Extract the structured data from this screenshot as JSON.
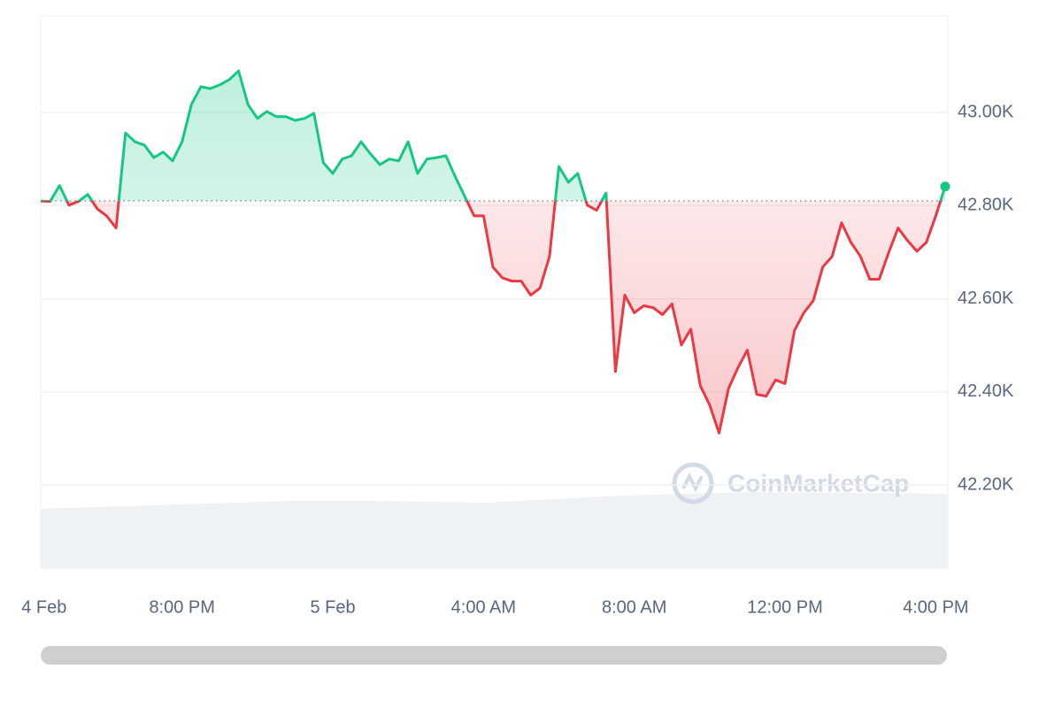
{
  "chart_data": {
    "type": "line",
    "x": [
      16.25,
      16.5,
      16.75,
      17,
      17.25,
      17.5,
      17.75,
      18,
      18.25,
      18.5,
      18.75,
      19,
      19.25,
      19.5,
      19.75,
      20,
      20.25,
      20.5,
      20.75,
      21,
      21.25,
      21.5,
      21.75,
      22,
      22.25,
      22.5,
      22.75,
      23,
      23.25,
      23.5,
      23.75,
      24,
      24.25,
      24.5,
      24.75,
      25,
      25.25,
      25.5,
      25.75,
      26,
      26.25,
      26.5,
      26.75,
      27,
      27.25,
      27.5,
      27.75,
      28,
      28.25,
      28.5,
      28.75,
      29,
      29.25,
      29.5,
      29.75,
      30,
      30.25,
      30.5,
      30.75,
      31,
      31.25,
      31.5,
      31.75,
      32,
      32.25,
      32.5,
      32.75,
      33,
      33.25,
      33.5,
      33.75,
      34,
      34.25,
      34.5,
      34.75,
      35,
      35.25,
      35.5,
      35.75,
      36,
      36.25,
      36.5,
      36.75,
      37,
      37.25,
      37.5,
      37.75,
      38,
      38.25,
      38.5,
      38.75,
      39,
      39.25,
      39.5,
      39.75,
      40,
      40.25
    ],
    "values": [
      42810,
      42809,
      42843,
      42801,
      42809,
      42824,
      42793,
      42778,
      42752,
      42956,
      42937,
      42930,
      42903,
      42915,
      42896,
      42937,
      43017,
      43055,
      43051,
      43059,
      43070,
      43089,
      43017,
      42987,
      43002,
      42991,
      42991,
      42983,
      42987,
      42998,
      42892,
      42869,
      42900,
      42907,
      42937,
      42911,
      42888,
      42900,
      42896,
      42937,
      42869,
      42900,
      42903,
      42907,
      42862,
      42820,
      42778,
      42778,
      42668,
      42645,
      42638,
      42638,
      42608,
      42623,
      42691,
      42884,
      42850,
      42869,
      42801,
      42790,
      42827,
      42444,
      42608,
      42570,
      42585,
      42581,
      42566,
      42589,
      42501,
      42535,
      42414,
      42372,
      42312,
      42407,
      42452,
      42490,
      42395,
      42391,
      42426,
      42418,
      42532,
      42570,
      42596,
      42668,
      42691,
      42763,
      42721,
      42691,
      42642,
      42642,
      42699,
      42752,
      42725,
      42702,
      42721,
      42778,
      42841
    ],
    "baseline": 42810,
    "color_up": "#16c784",
    "color_down": "#ea3943",
    "xlim": [
      16.25,
      40.25
    ],
    "xticks": [
      {
        "value": 16.34,
        "label": "4 Feb"
      },
      {
        "value": 20,
        "label": "8:00 PM"
      },
      {
        "value": 24,
        "label": "5 Feb"
      },
      {
        "value": 28,
        "label": "4:00 AM"
      },
      {
        "value": 32,
        "label": "8:00 AM"
      },
      {
        "value": 36,
        "label": "12:00 PM"
      },
      {
        "value": 40,
        "label": "4:00 PM"
      }
    ],
    "ylim": [
      42022,
      43207
    ],
    "yticks": [
      {
        "value": 42200,
        "label": "42.20K"
      },
      {
        "value": 42400,
        "label": "42.40K"
      },
      {
        "value": 42600,
        "label": "42.60K"
      },
      {
        "value": 42800,
        "label": "42.80K"
      },
      {
        "value": 43000,
        "label": "43.00K"
      }
    ],
    "grid": true,
    "watermark": "CoinMarketCap"
  }
}
